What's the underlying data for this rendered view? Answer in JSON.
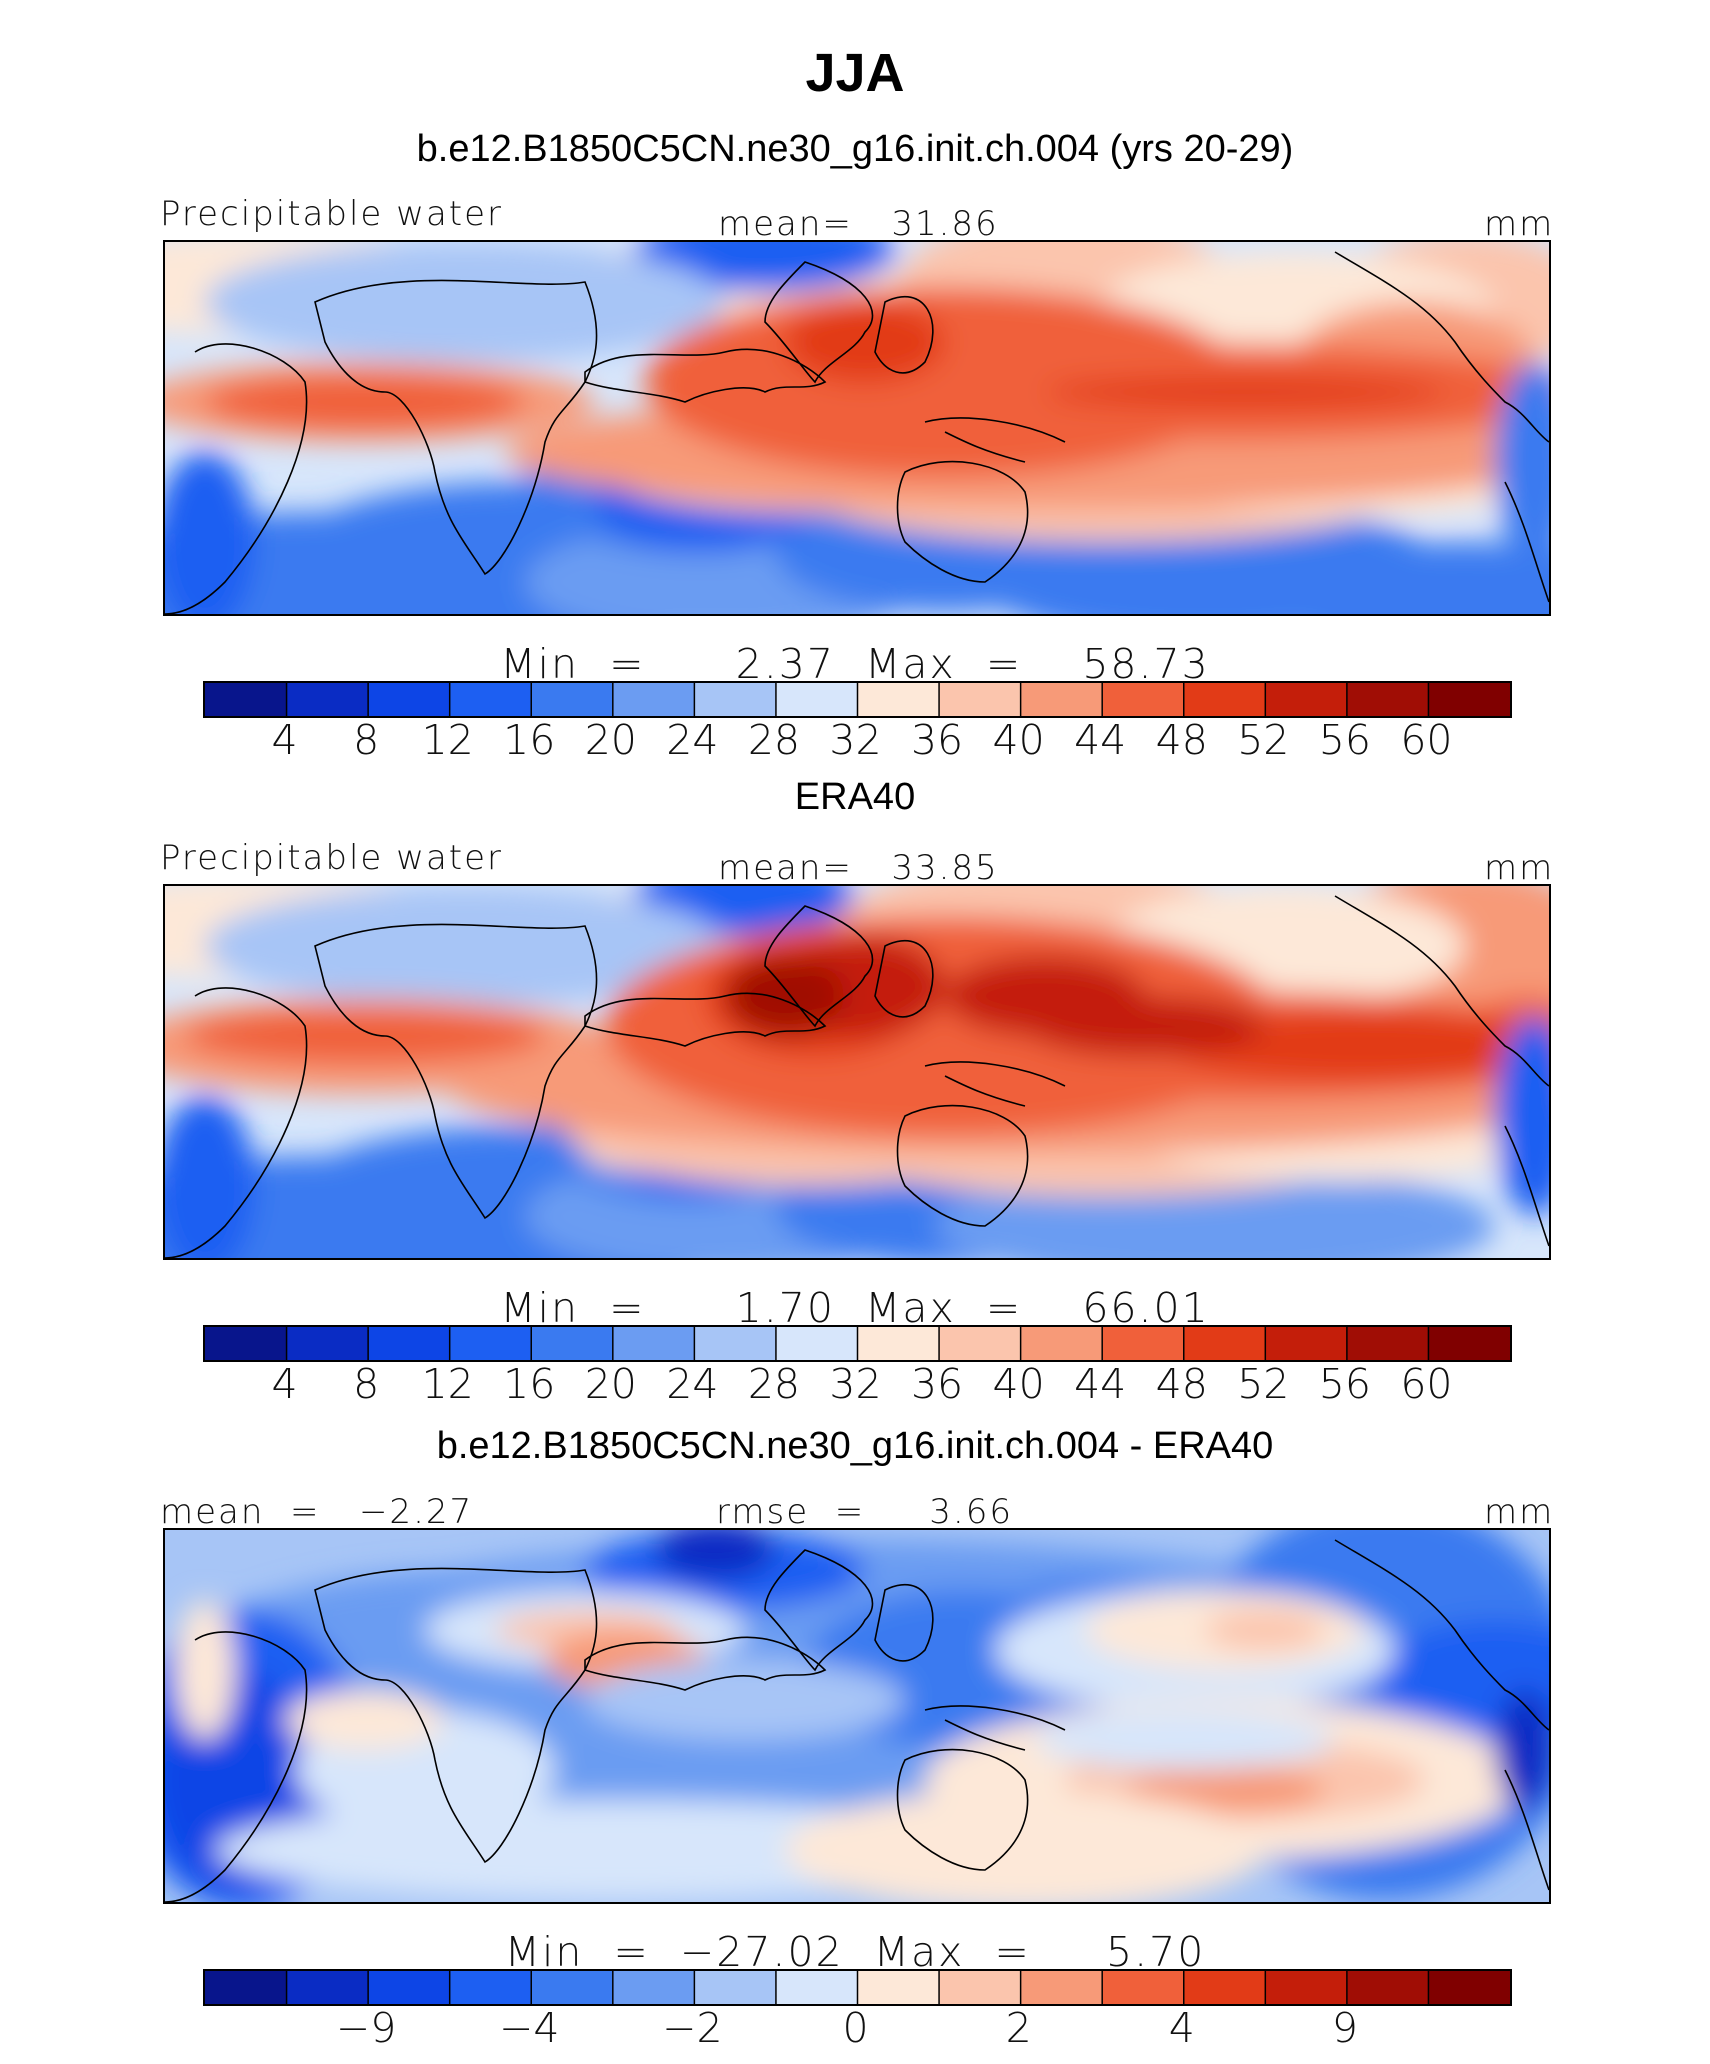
{
  "figure": {
    "title": "JJA"
  },
  "palette": [
    "#08158c",
    "#0a2cc4",
    "#0d45e6",
    "#1d5ff2",
    "#3a7af0",
    "#6b9cf2",
    "#a7c5f6",
    "#d7e6fb",
    "#fde8d8",
    "#fbc5ad",
    "#f79a78",
    "#f0603a",
    "#e23b17",
    "#c41e0a",
    "#a00d05",
    "#800000"
  ],
  "coast_color": "#000000",
  "chart_data": [
    {
      "type": "heatmap",
      "title": "b.e12.B1850C5CN.ne30_g16.init.ch.004 (yrs 20-29)",
      "variable": "Precipitable water",
      "units": "mm",
      "stat_left": "",
      "stat_mid": "mean=   31.86",
      "summary": "Min  =      2.37  Max  =    58.73",
      "mean": 31.86,
      "min": 2.37,
      "max": 58.73,
      "colorbar": {
        "levels": [
          4,
          8,
          12,
          16,
          20,
          24,
          28,
          32,
          36,
          40,
          44,
          48,
          52,
          56,
          60
        ],
        "labels": [
          "4",
          "8",
          "12",
          "16",
          "20",
          "24",
          "28",
          "32",
          "36",
          "40",
          "44",
          "48",
          "52",
          "56",
          "60"
        ]
      }
    },
    {
      "type": "heatmap",
      "title": "ERA40",
      "variable": "Precipitable water",
      "units": "mm",
      "stat_left": "",
      "stat_mid": "mean=   33.85",
      "summary": "Min  =      1.70  Max  =    66.01",
      "mean": 33.85,
      "min": 1.7,
      "max": 66.01,
      "colorbar": {
        "levels": [
          4,
          8,
          12,
          16,
          20,
          24,
          28,
          32,
          36,
          40,
          44,
          48,
          52,
          56,
          60
        ],
        "labels": [
          "4",
          "8",
          "12",
          "16",
          "20",
          "24",
          "28",
          "32",
          "36",
          "40",
          "44",
          "48",
          "52",
          "56",
          "60"
        ]
      }
    },
    {
      "type": "heatmap",
      "title": "b.e12.B1850C5CN.ne30_g16.init.ch.004 - ERA40",
      "variable": "",
      "units": "mm",
      "stat_left": "mean  =   −2.27",
      "stat_mid": "rmse  =     3.66",
      "summary": "Min  =  −27.02  Max  =     5.70",
      "mean": -2.27,
      "rmse": 3.66,
      "min": -27.02,
      "max": 5.7,
      "colorbar": {
        "levels": [
          -9,
          -4,
          -2,
          0,
          2,
          4,
          9
        ],
        "labels": [
          "−9",
          "−4",
          "−2",
          "0",
          "2",
          "4",
          "9"
        ]
      }
    }
  ]
}
